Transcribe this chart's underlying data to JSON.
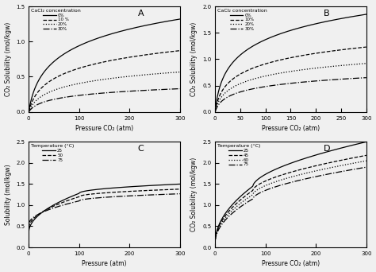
{
  "background_color": "#f0f0f0",
  "panel_A": {
    "xlabel": "Pressure CO₂ (atm)",
    "ylabel": "CO₂ Solubility (mol/kgw)",
    "xlim": [
      0,
      300
    ],
    "ylim": [
      0,
      1.5
    ],
    "legend_title": "CaCl₂ concentration",
    "legend_labels": [
      "0%",
      "10 %",
      "20%",
      "30%"
    ],
    "line_styles": [
      "-",
      "--",
      ":",
      "-."
    ],
    "scale_factors": [
      1.0,
      0.66,
      0.43,
      0.25
    ],
    "xticks": [
      0,
      100,
      200,
      300
    ],
    "yticks": [
      0,
      0.5,
      1.0,
      1.5
    ]
  },
  "panel_B": {
    "xlabel": "Pressure CO₂ (atm)",
    "ylabel": "CO₂ Solubility (mol/kgw)",
    "xlim": [
      0,
      300
    ],
    "ylim": [
      0,
      2.0
    ],
    "legend_title": "CaCl₂ concentration",
    "legend_labels": [
      "0%",
      "10%",
      "20%",
      "30%"
    ],
    "line_styles": [
      "-",
      "--",
      ":",
      "-."
    ],
    "scale_factors": [
      1.0,
      0.665,
      0.497,
      0.351
    ],
    "xticks": [
      0,
      50,
      100,
      150,
      200,
      250,
      300
    ],
    "yticks": [
      0,
      0.5,
      1.0,
      1.5,
      2.0
    ]
  },
  "panel_C": {
    "xlabel": "Pressure (atm)",
    "ylabel": "Solubility (mol/kgw)",
    "xlim": [
      0,
      300
    ],
    "ylim": [
      0,
      2.5
    ],
    "legend_title": "Temperature (°C)",
    "legend_labels": [
      "25",
      "50",
      "75"
    ],
    "line_styles": [
      "-",
      "--",
      "-."
    ],
    "xticks": [
      0,
      100,
      200,
      300
    ],
    "yticks": [
      0,
      0.5,
      1.0,
      1.5,
      2.0,
      2.5
    ]
  },
  "panel_D": {
    "xlabel": "Pressure CO₂ (atm)",
    "ylabel": "CO₂ Solubility (mol/kgw)",
    "xlim": [
      0,
      300
    ],
    "ylim": [
      0,
      2.5
    ],
    "legend_title": "Temperature (°C)",
    "legend_labels": [
      "25",
      "45",
      "60",
      "75"
    ],
    "line_styles": [
      "-",
      "--",
      ":",
      "-."
    ],
    "xticks": [
      0,
      100,
      200,
      300
    ],
    "yticks": [
      0,
      0.5,
      1.0,
      1.5,
      2.0,
      2.5
    ]
  }
}
